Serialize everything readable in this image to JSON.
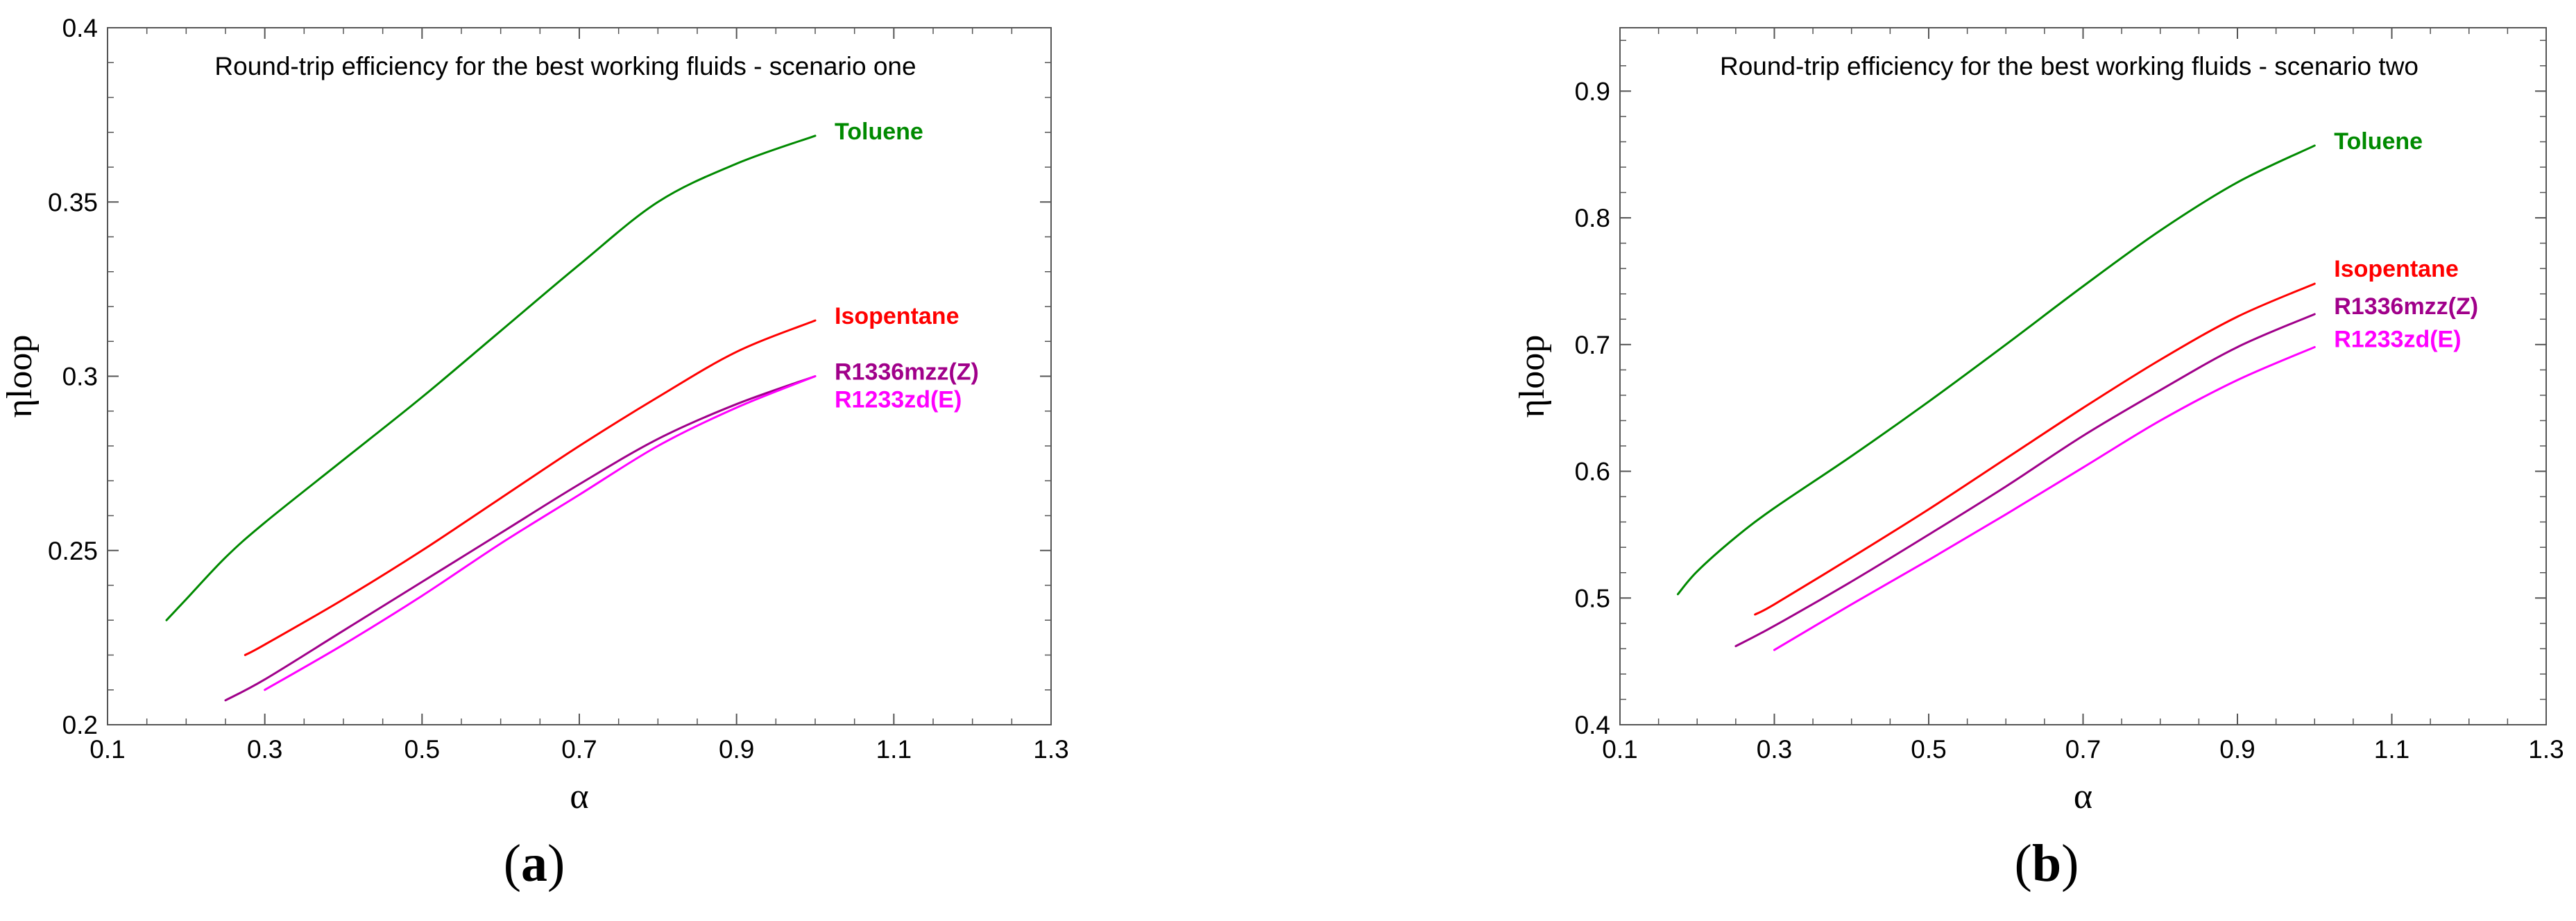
{
  "chart_data": [
    {
      "type": "line",
      "title": "Round-trip efficiency for the best working fluids - scenario one",
      "xlabel": "α",
      "ylabel": "ηloop",
      "xlim": [
        0.1,
        1.3
      ],
      "ylim": [
        0.2,
        0.4
      ],
      "xticks": [
        0.1,
        0.3,
        0.5,
        0.7,
        0.9,
        1.1,
        1.3
      ],
      "xtick_labels": [
        "0.1",
        "0.3",
        "0.5",
        "0.7",
        "0.9",
        "1.1",
        "1.3"
      ],
      "yticks": [
        0.2,
        0.25,
        0.3,
        0.35,
        0.4
      ],
      "ytick_labels": [
        "0.2",
        "0.25",
        "0.3",
        "0.35",
        "0.4"
      ],
      "grid": false,
      "caption": "a",
      "series": [
        {
          "name": "Toluene",
          "color": "#008a00",
          "x": [
            0.175,
            0.2,
            0.25,
            0.3,
            0.4,
            0.5,
            0.6,
            0.7,
            0.8,
            0.9,
            1.0
          ],
          "y": [
            0.23,
            0.236,
            0.248,
            0.258,
            0.276,
            0.294,
            0.313,
            0.332,
            0.35,
            0.361,
            0.369
          ]
        },
        {
          "name": "Isopentane",
          "color": "#ff0000",
          "x": [
            0.275,
            0.3,
            0.4,
            0.5,
            0.6,
            0.7,
            0.8,
            0.9,
            1.0
          ],
          "y": [
            0.22,
            0.223,
            0.236,
            0.25,
            0.265,
            0.28,
            0.294,
            0.307,
            0.316
          ]
        },
        {
          "name": "R1336mzz(Z)",
          "color": "#a0008a",
          "x": [
            0.25,
            0.3,
            0.4,
            0.5,
            0.6,
            0.7,
            0.8,
            0.9,
            1.0
          ],
          "y": [
            0.207,
            0.213,
            0.227,
            0.241,
            0.255,
            0.269,
            0.282,
            0.292,
            0.3
          ]
        },
        {
          "name": "R1233zd(E)",
          "color": "#ff00ff",
          "x": [
            0.3,
            0.4,
            0.5,
            0.6,
            0.7,
            0.8,
            0.9,
            1.0
          ],
          "y": [
            0.21,
            0.223,
            0.237,
            0.252,
            0.266,
            0.28,
            0.291,
            0.3
          ]
        }
      ]
    },
    {
      "type": "line",
      "title": "Round-trip efficiency for the best working fluids - scenario two",
      "xlabel": "α",
      "ylabel": "ηloop",
      "xlim": [
        0.1,
        1.3
      ],
      "ylim": [
        0.4,
        0.95
      ],
      "xticks": [
        0.1,
        0.3,
        0.5,
        0.7,
        0.9,
        1.1,
        1.3
      ],
      "xtick_labels": [
        "0.1",
        "0.3",
        "0.5",
        "0.7",
        "0.9",
        "1.1",
        "1.3"
      ],
      "yticks": [
        0.4,
        0.5,
        0.6,
        0.7,
        0.8,
        0.9
      ],
      "ytick_labels": [
        "0.4",
        "0.5",
        "0.6",
        "0.7",
        "0.8",
        "0.9"
      ],
      "grid": false,
      "caption": "b",
      "series": [
        {
          "name": "Toluene",
          "color": "#008a00",
          "x": [
            0.175,
            0.2,
            0.25,
            0.3,
            0.4,
            0.5,
            0.6,
            0.7,
            0.8,
            0.9,
            1.0
          ],
          "y": [
            0.503,
            0.521,
            0.548,
            0.571,
            0.612,
            0.655,
            0.7,
            0.746,
            0.79,
            0.828,
            0.857
          ]
        },
        {
          "name": "Isopentane",
          "color": "#ff0000",
          "x": [
            0.275,
            0.3,
            0.4,
            0.5,
            0.6,
            0.7,
            0.8,
            0.9,
            1.0
          ],
          "y": [
            0.487,
            0.495,
            0.532,
            0.57,
            0.61,
            0.65,
            0.688,
            0.722,
            0.748
          ]
        },
        {
          "name": "R1336mzz(Z)",
          "color": "#a0008a",
          "x": [
            0.25,
            0.3,
            0.4,
            0.5,
            0.6,
            0.7,
            0.8,
            0.9,
            1.0
          ],
          "y": [
            0.462,
            0.478,
            0.513,
            0.55,
            0.588,
            0.628,
            0.664,
            0.698,
            0.724
          ]
        },
        {
          "name": "R1233zd(E)",
          "color": "#ff00ff",
          "x": [
            0.3,
            0.4,
            0.5,
            0.6,
            0.7,
            0.8,
            0.9,
            1.0
          ],
          "y": [
            0.459,
            0.495,
            0.53,
            0.566,
            0.603,
            0.64,
            0.672,
            0.698
          ]
        }
      ]
    }
  ]
}
